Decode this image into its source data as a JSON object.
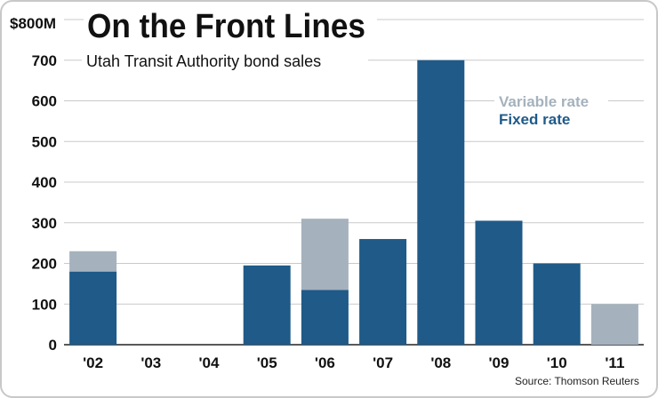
{
  "chart_data": {
    "type": "bar",
    "stacked": true,
    "title": "On the Front Lines",
    "subtitle": "Utah Transit Authority bond sales",
    "y_unit_label": "$800M",
    "categories": [
      "'02",
      "'03",
      "'04",
      "'05",
      "'06",
      "'07",
      "'08",
      "'09",
      "'10",
      "'11"
    ],
    "series": [
      {
        "name": "Fixed rate",
        "values": [
          180,
          0,
          0,
          195,
          135,
          260,
          700,
          305,
          200,
          0
        ],
        "color": "#1f5a88"
      },
      {
        "name": "Variable rate",
        "values": [
          50,
          0,
          0,
          0,
          175,
          0,
          0,
          0,
          0,
          100
        ],
        "color": "#a5b2bd"
      }
    ],
    "y_ticks": [
      0,
      100,
      200,
      300,
      400,
      500,
      600,
      700
    ],
    "ylim": [
      0,
      800
    ],
    "grid": true,
    "legend_position": "top-right",
    "source": "Source: Thomson Reuters"
  }
}
